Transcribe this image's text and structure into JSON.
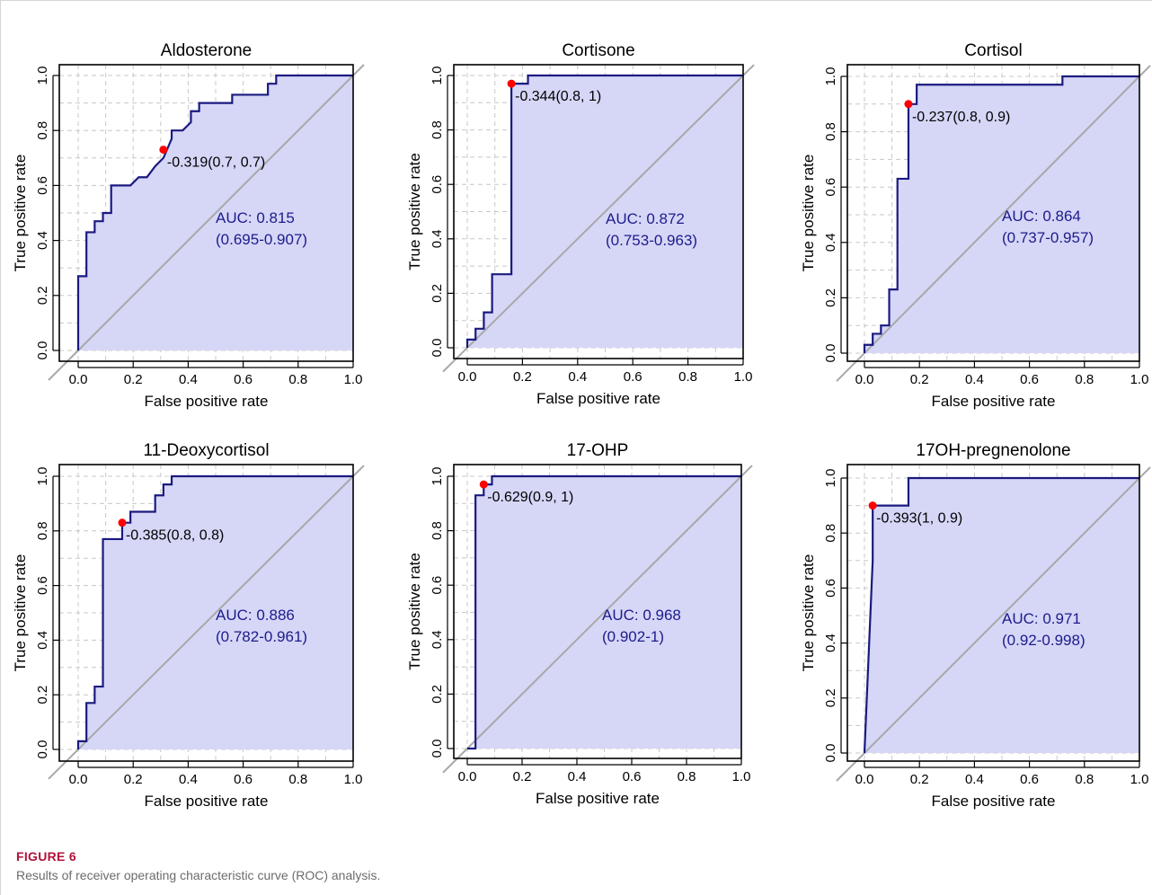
{
  "figure": {
    "label": "FIGURE 6",
    "caption": "Results of receiver operating characteristic curve (ROC) analysis."
  },
  "colors": {
    "curve": "#1a1a80",
    "fill": "#d6d6f7",
    "diagonal": "#a8a8a8",
    "grid": "#c8c8c8",
    "cutoff_point": "#ff0000",
    "auc_text": "#1c1c8c"
  },
  "chart_data": [
    {
      "type": "line",
      "title": "Aldosterone",
      "xlabel": "False positive rate",
      "ylabel": "True positive rate",
      "xlim": [
        0,
        1
      ],
      "ylim": [
        0,
        1
      ],
      "xticks": [
        "0.0",
        "0.2",
        "0.4",
        "0.6",
        "0.8",
        "1.0"
      ],
      "yticks": [
        "0.0",
        "0.2",
        "0.4",
        "0.6",
        "0.8",
        "1.0"
      ],
      "grid": true,
      "x": [
        0,
        0,
        0.03,
        0.03,
        0.06,
        0.06,
        0.09,
        0.09,
        0.12,
        0.12,
        0.19,
        0.22,
        0.25,
        0.28,
        0.31,
        0.34,
        0.34,
        0.38,
        0.41,
        0.41,
        0.44,
        0.44,
        0.56,
        0.56,
        0.69,
        0.69,
        0.72,
        0.72,
        1.0
      ],
      "y": [
        0,
        0.27,
        0.27,
        0.43,
        0.43,
        0.47,
        0.47,
        0.5,
        0.5,
        0.6,
        0.6,
        0.63,
        0.63,
        0.67,
        0.7,
        0.77,
        0.8,
        0.8,
        0.83,
        0.87,
        0.87,
        0.9,
        0.9,
        0.93,
        0.93,
        0.97,
        0.97,
        1.0,
        1.0
      ],
      "cutoff": {
        "x": 0.31,
        "y": 0.73,
        "label": "-0.319(0.7, 0.7)"
      },
      "auc": {
        "label": "AUC: 0.815",
        "ci": "(0.695-0.907)"
      }
    },
    {
      "type": "line",
      "title": "Cortisone",
      "xlabel": "False positive rate",
      "ylabel": "True positive rate",
      "xlim": [
        0,
        1
      ],
      "ylim": [
        0,
        1
      ],
      "xticks": [
        "0.0",
        "0.2",
        "0.4",
        "0.6",
        "0.8",
        "1.0"
      ],
      "yticks": [
        "0.0",
        "0.2",
        "0.4",
        "0.6",
        "0.8",
        "1.0"
      ],
      "grid": true,
      "x": [
        0,
        0,
        0.03,
        0.03,
        0.06,
        0.06,
        0.09,
        0.09,
        0.12,
        0.12,
        0.16,
        0.16,
        0.22,
        0.22,
        1.0
      ],
      "y": [
        0,
        0.03,
        0.03,
        0.07,
        0.07,
        0.13,
        0.13,
        0.27,
        0.27,
        0.27,
        0.27,
        0.97,
        0.97,
        1.0,
        1.0
      ],
      "cutoff": {
        "x": 0.16,
        "y": 0.97,
        "label": "-0.344(0.8, 1)"
      },
      "auc": {
        "label": "AUC: 0.872",
        "ci": "(0.753-0.963)"
      }
    },
    {
      "type": "line",
      "title": "Cortisol",
      "xlabel": "False positive rate",
      "ylabel": "True positive rate",
      "xlim": [
        0,
        1
      ],
      "ylim": [
        0,
        1
      ],
      "xticks": [
        "0.0",
        "0.2",
        "0.4",
        "0.6",
        "0.8",
        "1.0"
      ],
      "yticks": [
        "0.0",
        "0.2",
        "0.4",
        "0.6",
        "0.8",
        "1.0"
      ],
      "grid": true,
      "x": [
        0,
        0,
        0.03,
        0.03,
        0.06,
        0.06,
        0.09,
        0.09,
        0.12,
        0.12,
        0.16,
        0.16,
        0.19,
        0.19,
        0.72,
        0.72,
        1.0
      ],
      "y": [
        0,
        0.03,
        0.03,
        0.07,
        0.07,
        0.1,
        0.1,
        0.23,
        0.23,
        0.63,
        0.63,
        0.9,
        0.9,
        0.97,
        0.97,
        1.0,
        1.0
      ],
      "cutoff": {
        "x": 0.16,
        "y": 0.9,
        "label": "-0.237(0.8, 0.9)"
      },
      "auc": {
        "label": "AUC: 0.864",
        "ci": "(0.737-0.957)"
      }
    },
    {
      "type": "line",
      "title": "11-Deoxycortisol",
      "xlabel": "False positive rate",
      "ylabel": "True positive rate",
      "xlim": [
        0,
        1
      ],
      "ylim": [
        0,
        1
      ],
      "xticks": [
        "0.0",
        "0.2",
        "0.4",
        "0.6",
        "0.8",
        "1.0"
      ],
      "yticks": [
        "0.0",
        "0.2",
        "0.4",
        "0.6",
        "0.8",
        "1.0"
      ],
      "grid": true,
      "x": [
        0,
        0,
        0.03,
        0.03,
        0.06,
        0.06,
        0.09,
        0.09,
        0.16,
        0.16,
        0.19,
        0.19,
        0.28,
        0.28,
        0.31,
        0.31,
        0.34,
        0.34,
        1.0
      ],
      "y": [
        0,
        0.03,
        0.03,
        0.17,
        0.17,
        0.23,
        0.23,
        0.77,
        0.77,
        0.83,
        0.83,
        0.87,
        0.87,
        0.93,
        0.93,
        0.97,
        0.97,
        1.0,
        1.0
      ],
      "cutoff": {
        "x": 0.16,
        "y": 0.83,
        "label": "-0.385(0.8, 0.8)"
      },
      "auc": {
        "label": "AUC: 0.886",
        "ci": "(0.782-0.961)"
      }
    },
    {
      "type": "line",
      "title": "17-OHP",
      "xlabel": "False positive rate",
      "ylabel": "True positive rate",
      "xlim": [
        0,
        1
      ],
      "ylim": [
        0,
        1
      ],
      "xticks": [
        "0.0",
        "0.2",
        "0.4",
        "0.6",
        "0.8",
        "1.0"
      ],
      "yticks": [
        "0.0",
        "0.2",
        "0.4",
        "0.6",
        "0.8",
        "1.0"
      ],
      "grid": true,
      "x": [
        0,
        0.03,
        0.03,
        0.06,
        0.06,
        0.09,
        0.09,
        1.0
      ],
      "y": [
        0,
        0,
        0.93,
        0.93,
        0.97,
        0.97,
        1.0,
        1.0
      ],
      "cutoff": {
        "x": 0.06,
        "y": 0.97,
        "label": "-0.629(0.9, 1)"
      },
      "auc": {
        "label": "AUC: 0.968",
        "ci": "(0.902-1)"
      }
    },
    {
      "type": "line",
      "title": "17OH-pregnenolone",
      "xlabel": "False positive rate",
      "ylabel": "True positive rate",
      "xlim": [
        0,
        1
      ],
      "ylim": [
        0,
        1
      ],
      "xticks": [
        "0.0",
        "0.2",
        "0.4",
        "0.6",
        "0.8",
        "1.0"
      ],
      "yticks": [
        "0.0",
        "0.2",
        "0.4",
        "0.6",
        "0.8",
        "1.0"
      ],
      "grid": true,
      "x": [
        0,
        0.03,
        0.03,
        0.16,
        0.16,
        1.0
      ],
      "y": [
        0,
        0.7,
        0.9,
        0.9,
        1.0,
        1.0
      ],
      "cutoff": {
        "x": 0.03,
        "y": 0.9,
        "label": "-0.393(1, 0.9)"
      },
      "auc": {
        "label": "AUC: 0.971",
        "ci": "(0.92-0.998)"
      }
    }
  ]
}
